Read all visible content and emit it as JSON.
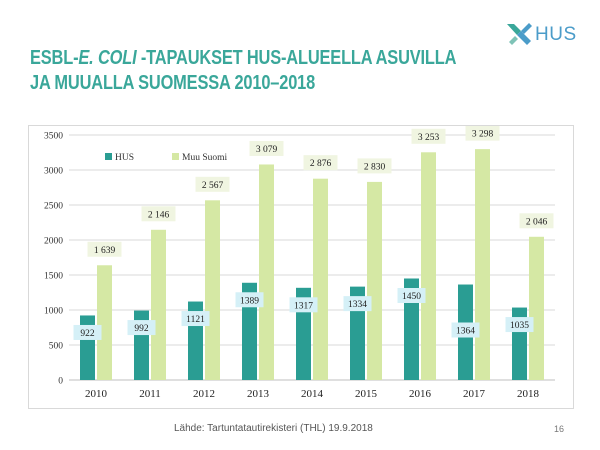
{
  "logo": {
    "text": "HUS",
    "accent": "#3aa79a"
  },
  "title": {
    "line1_pre": "ESBL-",
    "line1_italic": "E. COLI",
    "line1_post": " -TAPAUKSET HUS-ALUEELLA ASUVILLA",
    "line2": "JA MUUALLA SUOMESSA 2010–2018",
    "color": "#3aa79a"
  },
  "chart_data": {
    "type": "bar",
    "categories": [
      "2010",
      "2011",
      "2012",
      "2013",
      "2014",
      "2015",
      "2016",
      "2017",
      "2018"
    ],
    "series": [
      {
        "name": "HUS",
        "values": [
          922,
          992,
          1121,
          1389,
          1317,
          1334,
          1450,
          1364,
          1035
        ],
        "labels": [
          "922",
          "992",
          "1121",
          "1389",
          "1317",
          "1334",
          "1450",
          "1364",
          "1035"
        ],
        "color": "#2a9d93",
        "label_fill": "#d5f0f7"
      },
      {
        "name": "Muu Suomi",
        "values": [
          1639,
          2146,
          2567,
          3079,
          2876,
          2830,
          3253,
          3298,
          2046
        ],
        "labels": [
          "1 639",
          "2 146",
          "2 567",
          "3 079",
          "2 876",
          "2 830",
          "3 253",
          "3 298",
          "2 046"
        ],
        "color": "#d5e8a4",
        "label_fill": "#f0f5e1"
      }
    ],
    "ylim": [
      0,
      3500
    ],
    "yticks": [
      "0",
      "500",
      "1000",
      "1500",
      "2000",
      "2500",
      "3000",
      "3500"
    ],
    "ytick_values": [
      0,
      500,
      1000,
      1500,
      2000,
      2500,
      3000,
      3500
    ],
    "grid": true,
    "legend": "top-left",
    "xlabel": "",
    "ylabel": ""
  },
  "footer": {
    "source": "Lähde: Tartuntatautirekisteri (THL) 19.9.2018",
    "page_number": "16"
  }
}
